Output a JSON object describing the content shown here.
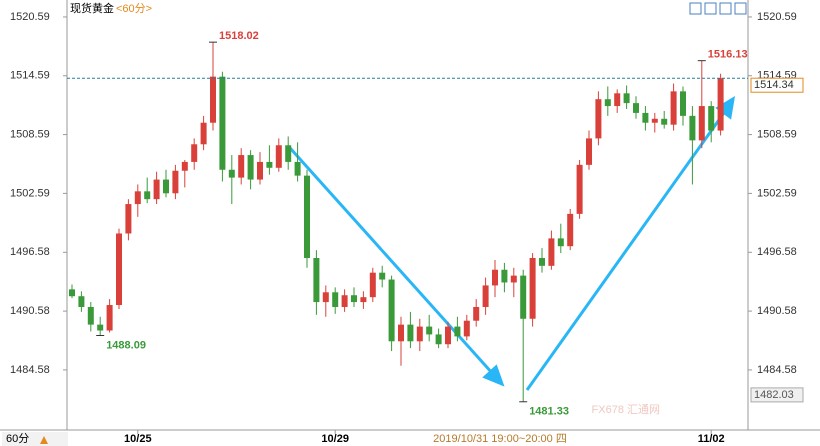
{
  "chart_data": {
    "type": "candlestick",
    "title": "现货黄金",
    "period": "<60分>",
    "period_button": "60分",
    "crosshair_label": "2019/10/31 19:00~20:00 四",
    "crosshair_y_value": 1482.03,
    "watermark": "FX678 汇通网",
    "categories": [
      null,
      null,
      null,
      null,
      null,
      null,
      null,
      "10/25",
      null,
      null,
      null,
      null,
      null,
      null,
      null,
      null,
      null,
      null,
      null,
      null,
      null,
      null,
      null,
      null,
      null,
      null,
      null,
      null,
      "10/29",
      null,
      null,
      null,
      null,
      null,
      null,
      null,
      null,
      null,
      null,
      null,
      null,
      null,
      null,
      null,
      null,
      null,
      null,
      null,
      null,
      null,
      null,
      null,
      null,
      null,
      null,
      null,
      null,
      null,
      null,
      null,
      null,
      null,
      null,
      null,
      null,
      null,
      null,
      null,
      "11/02",
      null
    ],
    "open": [
      1492.8,
      1492.1,
      1491.0,
      1489.2,
      1488.6,
      1491.2,
      1498.5,
      1501.5,
      1502.8,
      1502.0,
      1504.0,
      1502.6,
      1504.9,
      1505.8,
      1507.6,
      1509.8,
      1514.5,
      1505.0,
      1504.2,
      1506.5,
      1504.0,
      1505.8,
      1505.2,
      1507.5,
      1505.8,
      1504.4,
      1496.0,
      1491.5,
      1492.5,
      1491.0,
      1492.2,
      1491.5,
      1492.0,
      1494.5,
      1493.8,
      1487.5,
      1489.2,
      1487.5,
      1489.0,
      1488.2,
      1487.2,
      1489.0,
      1488.0,
      1489.6,
      1491.0,
      1493.2,
      1494.8,
      1493.5,
      1494.2,
      1489.8,
      1496.0,
      1495.2,
      1498.0,
      1497.2,
      1500.5,
      1505.5,
      1508.2,
      1512.2,
      1511.5,
      1512.8,
      1511.8,
      1510.8,
      1509.8,
      1510.2,
      1509.6,
      1513.0,
      1510.5,
      1508.0,
      1511.5,
      1509.0
    ],
    "high": [
      1493.3,
      1492.6,
      1491.5,
      1490.0,
      1491.8,
      1499.0,
      1502.0,
      1503.5,
      1504.2,
      1504.8,
      1505.0,
      1505.5,
      1506.0,
      1508.2,
      1510.5,
      1518.02,
      1515.0,
      1506.5,
      1507.2,
      1507.0,
      1506.8,
      1507.5,
      1508.2,
      1508.4,
      1507.8,
      1505.0,
      1496.8,
      1493.2,
      1493.0,
      1492.8,
      1493.0,
      1492.6,
      1495.0,
      1495.2,
      1494.2,
      1490.0,
      1490.5,
      1489.8,
      1490.2,
      1488.8,
      1489.5,
      1490.0,
      1490.2,
      1491.8,
      1494.0,
      1495.8,
      1495.5,
      1495.0,
      1494.8,
      1496.5,
      1497.0,
      1498.8,
      1499.5,
      1501.0,
      1506.0,
      1509.0,
      1513.0,
      1513.5,
      1513.2,
      1513.6,
      1512.5,
      1511.5,
      1510.8,
      1511.0,
      1513.8,
      1513.5,
      1511.5,
      1516.13,
      1512.0,
      1514.8
    ],
    "low": [
      1491.9,
      1490.5,
      1488.5,
      1488.09,
      1488.4,
      1490.8,
      1497.8,
      1500.2,
      1501.6,
      1501.5,
      1502.2,
      1502.0,
      1503.2,
      1505.0,
      1507.0,
      1509.0,
      1503.8,
      1501.5,
      1503.5,
      1503.0,
      1503.5,
      1504.5,
      1504.8,
      1505.0,
      1503.8,
      1495.0,
      1490.2,
      1490.0,
      1490.3,
      1490.5,
      1491.0,
      1490.8,
      1491.5,
      1493.0,
      1486.5,
      1485.0,
      1486.8,
      1486.5,
      1487.5,
      1486.8,
      1486.8,
      1487.5,
      1487.6,
      1489.0,
      1490.2,
      1492.0,
      1492.5,
      1492.0,
      1481.33,
      1489.0,
      1494.5,
      1494.8,
      1496.5,
      1496.8,
      1500.0,
      1505.0,
      1507.5,
      1510.5,
      1510.8,
      1511.2,
      1510.2,
      1509.0,
      1508.8,
      1509.2,
      1509.0,
      1509.5,
      1503.5,
      1507.2,
      1507.8,
      1508.5
    ],
    "close": [
      1492.1,
      1491.0,
      1489.2,
      1488.6,
      1491.2,
      1498.5,
      1501.5,
      1502.8,
      1502.0,
      1504.0,
      1502.6,
      1504.9,
      1505.8,
      1507.6,
      1509.8,
      1514.5,
      1505.0,
      1504.2,
      1506.5,
      1504.0,
      1505.8,
      1505.2,
      1507.5,
      1505.8,
      1504.4,
      1496.0,
      1491.5,
      1492.5,
      1491.0,
      1492.2,
      1491.5,
      1492.0,
      1494.5,
      1493.8,
      1487.5,
      1489.2,
      1487.5,
      1489.0,
      1488.2,
      1487.2,
      1489.0,
      1488.0,
      1489.6,
      1491.0,
      1493.2,
      1494.8,
      1493.5,
      1494.2,
      1489.8,
      1496.0,
      1495.2,
      1498.0,
      1497.2,
      1500.5,
      1505.5,
      1508.2,
      1512.2,
      1511.5,
      1512.8,
      1511.8,
      1510.8,
      1509.8,
      1510.2,
      1509.6,
      1513.0,
      1510.5,
      1508.0,
      1511.5,
      1509.0,
      1514.34
    ],
    "up_color": "#d9403a",
    "down_color": "#3a9a3a",
    "last_price_color": "#e38a1e",
    "ylim": [
      1478.45,
      1522.32
    ],
    "yticks": [
      1484.58,
      1490.58,
      1496.58,
      1502.59,
      1508.59,
      1514.59,
      1520.59
    ],
    "annotations": [
      {
        "value": 1518.02
      },
      {
        "value": 1516.13
      },
      {
        "value": 1488.09
      },
      {
        "value": 1481.33
      }
    ],
    "grid": false
  }
}
